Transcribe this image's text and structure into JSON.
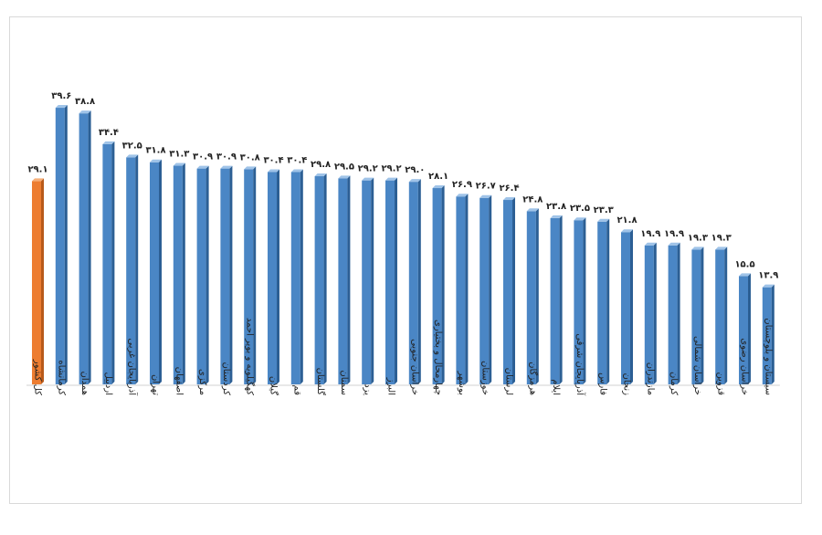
{
  "chart_data": {
    "type": "bar",
    "title": "",
    "xlabel": "",
    "ylabel": "",
    "ylim": [
      0,
      45
    ],
    "grid": false,
    "legend": "none",
    "categories": [
      "کل کشور",
      "کرمانشاه",
      "همدان",
      "اردبیل",
      "آذربایجان غربی",
      "تهران",
      "اصفهان",
      "مرکزی",
      "کردستان",
      "کهگیلویه و بویر احمد",
      "گیلان",
      "قم",
      "گلستان",
      "سمنان",
      "یزد",
      "البرز",
      "خراسان جنوبی",
      "چهارمحال و بختیاری",
      "بوشهر",
      "خوزستان",
      "لرستان",
      "هرمزگان",
      "ایلام",
      "آذربایجان شرقی",
      "فارس",
      "زنجان",
      "مازندران",
      "کرمان",
      "خراسان شمالی",
      "قزوین",
      "خراسان رضوی",
      "سیستان و بلوچستان"
    ],
    "values": [
      29.1,
      39.6,
      38.8,
      34.4,
      32.5,
      31.8,
      31.3,
      30.9,
      30.9,
      30.8,
      30.4,
      30.4,
      29.8,
      29.5,
      29.2,
      29.2,
      29.0,
      28.1,
      26.9,
      26.7,
      26.4,
      24.8,
      23.8,
      23.5,
      23.3,
      21.8,
      19.9,
      19.9,
      19.3,
      19.3,
      15.5,
      13.9
    ],
    "value_labels": [
      "۲۹.۱",
      "۳۹.۶",
      "۳۸.۸",
      "۳۴.۴",
      "۳۲.۵",
      "۳۱.۸",
      "۳۱.۳",
      "۳۰.۹",
      "۳۰.۹",
      "۳۰.۸",
      "۳۰.۴",
      "۳۰.۴",
      "۲۹.۸",
      "۲۹.۵",
      "۲۹.۲",
      "۲۹.۲",
      "۲۹.۰",
      "۲۸.۱",
      "۲۶.۹",
      "۲۶.۷",
      "۲۶.۴",
      "۲۴.۸",
      "۲۳.۸",
      "۲۳.۵",
      "۲۳.۳",
      "۲۱.۸",
      "۱۹.۹",
      "۱۹.۹",
      "۱۹.۳",
      "۱۹.۳",
      "۱۵.۵",
      "۱۳.۹"
    ],
    "highlight_index": 0,
    "colors": {
      "bar": "#4a86c5",
      "bar_side": "#2c5f94",
      "bar_top": "#9fc3e8",
      "highlight": "#ed7d31",
      "highlight_side": "#b85a1a",
      "highlight_top": "#f6b07a",
      "floor": "#d0d0d0"
    }
  }
}
